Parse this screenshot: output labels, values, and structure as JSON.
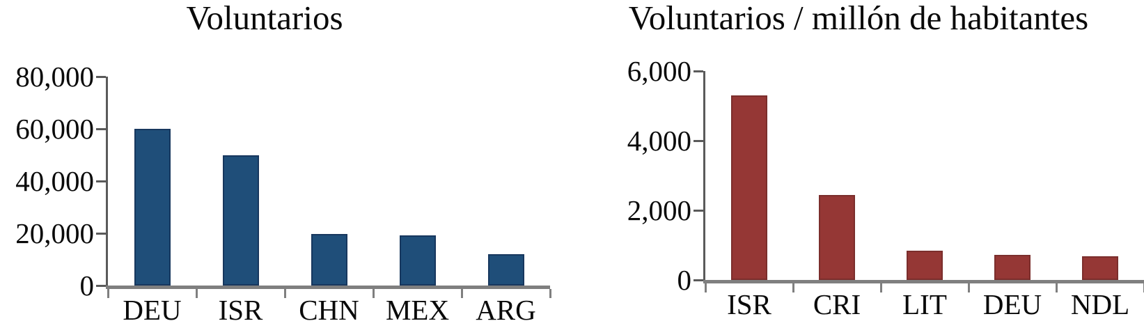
{
  "chart_data": [
    {
      "type": "bar",
      "title": "Voluntarios",
      "categories": [
        "DEU",
        "ISR",
        "CHN",
        "MEX",
        "ARG"
      ],
      "values": [
        60000,
        50000,
        19800,
        19300,
        12000
      ],
      "xlabel": "",
      "ylabel": "",
      "ylim": [
        0,
        80000
      ],
      "ytick_step": 20000,
      "ytick_labels": [
        "0",
        "20,000",
        "40,000",
        "60,000",
        "80,000"
      ],
      "grid": false,
      "legend": "none",
      "bar_color": "#1f4e79",
      "bar_border_color": "#17375e"
    },
    {
      "type": "bar",
      "title": "Voluntarios / millón de habitantes",
      "categories": [
        "ISR",
        "CRI",
        "LIT",
        "DEU",
        "NDL"
      ],
      "values": [
        5300,
        2440,
        840,
        720,
        680
      ],
      "xlabel": "",
      "ylabel": "",
      "ylim": [
        0,
        6000
      ],
      "ytick_step": 2000,
      "ytick_labels": [
        "0",
        "2,000",
        "4,000",
        "6,000"
      ],
      "grid": false,
      "legend": "none",
      "bar_color": "#953735",
      "bar_border_color": "#7b2e2c"
    }
  ],
  "axis_colors": {
    "x_axis_line": "#7f7f7f",
    "y_axis_line": "#5a5a5a",
    "text": "#0a0a0a"
  }
}
